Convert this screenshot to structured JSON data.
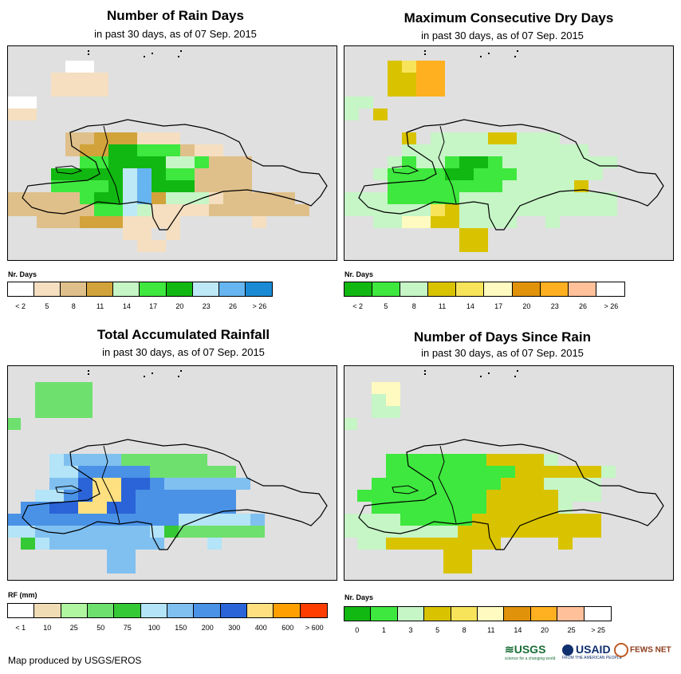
{
  "panels": [
    {
      "title": "Number of Rain Days",
      "subtitle": "in past 30 days, as of 07 Sep. 2015",
      "legend_title": "Nr. Days",
      "legend_labels": [
        "< 2",
        "5",
        "8",
        "11",
        "14",
        "17",
        "20",
        "23",
        "26",
        "> 26"
      ],
      "legend_colors": [
        "#ffffff",
        "#f5dfc0",
        "#e0c08a",
        "#d1a33a",
        "#c6f5c6",
        "#3ee83e",
        "#12b812",
        "#bde8f5",
        "#66b5f0",
        "#1a8ad4"
      ]
    },
    {
      "title": "Maximum Consecutive Dry Days",
      "subtitle": "in past 30 days, as of 07 Sep. 2015",
      "legend_title": "Nr. Days",
      "legend_labels": [
        "< 2",
        "5",
        "8",
        "11",
        "14",
        "17",
        "20",
        "23",
        "26",
        "> 26"
      ],
      "legend_colors": [
        "#12b812",
        "#3ee83e",
        "#c6f5c6",
        "#d9c300",
        "#f8e45a",
        "#fffac0",
        "#e0920a",
        "#ffb020",
        "#ffc09a",
        "#ffffff"
      ]
    },
    {
      "title": "Total Accumulated Rainfall",
      "subtitle": "in past 30 days, as of 07 Sep. 2015",
      "legend_title": "RF (mm)",
      "legend_labels": [
        "< 1",
        "10",
        "25",
        "50",
        "75",
        "100",
        "150",
        "200",
        "300",
        "400",
        "600",
        "> 600"
      ],
      "legend_colors": [
        "#ffffff",
        "#f0dcb4",
        "#b0f5a0",
        "#6ee06e",
        "#35c935",
        "#b4e4f8",
        "#80c0f0",
        "#4a92e6",
        "#2a64d8",
        "#ffe080",
        "#ffa000",
        "#ff3d00"
      ]
    },
    {
      "title": "Number of Days Since Rain",
      "subtitle": "in past 30 days, as of 07 Sep. 2015",
      "legend_title": "Nr. Days",
      "legend_labels": [
        "0",
        "1",
        "3",
        "5",
        "8",
        "11",
        "14",
        "20",
        "25",
        "> 25"
      ],
      "legend_colors": [
        "#12b812",
        "#3ee83e",
        "#c6f5c6",
        "#d9c300",
        "#f8e45a",
        "#fffac0",
        "#e0920a",
        "#ffb020",
        "#ffc09a",
        "#ffffff"
      ]
    }
  ],
  "footer": "Map produced by USGS/EROS",
  "logos": {
    "usgs": "USGS",
    "usgs_tag": "science for a changing world",
    "usaid": "USAID",
    "usaid_tag": "FROM THE AMERICAN PEOPLE",
    "fews": "FEWS NET"
  }
}
